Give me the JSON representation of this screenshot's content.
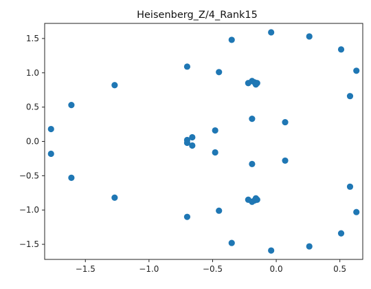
{
  "chart_data": {
    "type": "scatter",
    "title": "Heisenberg_Z/4_Rank15",
    "xlabel": "",
    "ylabel": "",
    "xlim": [
      -1.82,
      0.68
    ],
    "ylim": [
      -1.72,
      1.72
    ],
    "xticks": [
      -1.5,
      -1.0,
      -0.5,
      0.0,
      0.5
    ],
    "xtick_labels": [
      "−1.5",
      "−1.0",
      "−0.5",
      "0.0",
      "0.5"
    ],
    "yticks": [
      -1.5,
      -1.0,
      -0.5,
      0.0,
      0.5,
      1.0,
      1.5
    ],
    "ytick_labels": [
      "−1.5",
      "−1.0",
      "−0.5",
      "0.0",
      "0.5",
      "1.0",
      "1.5"
    ],
    "grid": false,
    "marker_color": "#1f77b4",
    "series": [
      {
        "points": [
          {
            "x": -1.77,
            "y": 0.18
          },
          {
            "x": -1.77,
            "y": -0.18
          },
          {
            "x": -1.61,
            "y": 0.53
          },
          {
            "x": -1.61,
            "y": -0.53
          },
          {
            "x": -1.27,
            "y": 0.82
          },
          {
            "x": -1.27,
            "y": -0.82
          },
          {
            "x": -0.7,
            "y": 1.09
          },
          {
            "x": -0.7,
            "y": -1.1
          },
          {
            "x": -0.45,
            "y": 1.01
          },
          {
            "x": -0.45,
            "y": -1.01
          },
          {
            "x": -0.35,
            "y": 1.48
          },
          {
            "x": -0.35,
            "y": -1.48
          },
          {
            "x": -0.04,
            "y": 1.59
          },
          {
            "x": -0.04,
            "y": -1.59
          },
          {
            "x": 0.26,
            "y": 1.53
          },
          {
            "x": 0.26,
            "y": -1.53
          },
          {
            "x": 0.51,
            "y": 1.34
          },
          {
            "x": 0.51,
            "y": -1.34
          },
          {
            "x": 0.63,
            "y": 1.03
          },
          {
            "x": 0.63,
            "y": -1.03
          },
          {
            "x": 0.58,
            "y": 0.66
          },
          {
            "x": 0.58,
            "y": -0.66
          },
          {
            "x": 0.07,
            "y": 0.28
          },
          {
            "x": 0.07,
            "y": -0.28
          },
          {
            "x": -0.19,
            "y": 0.33
          },
          {
            "x": -0.19,
            "y": -0.33
          },
          {
            "x": -0.48,
            "y": 0.16
          },
          {
            "x": -0.48,
            "y": -0.16
          },
          {
            "x": -0.7,
            "y": 0.02
          },
          {
            "x": -0.7,
            "y": -0.02
          },
          {
            "x": -0.66,
            "y": 0.06
          },
          {
            "x": -0.66,
            "y": -0.06
          },
          {
            "x": -0.22,
            "y": 0.85
          },
          {
            "x": -0.22,
            "y": -0.85
          },
          {
            "x": -0.19,
            "y": 0.88
          },
          {
            "x": -0.19,
            "y": -0.88
          },
          {
            "x": -0.17,
            "y": 0.86
          },
          {
            "x": -0.17,
            "y": -0.86
          },
          {
            "x": -0.15,
            "y": 0.85
          },
          {
            "x": -0.15,
            "y": -0.85
          },
          {
            "x": -0.16,
            "y": 0.83
          },
          {
            "x": -0.16,
            "y": -0.83
          }
        ]
      }
    ]
  }
}
